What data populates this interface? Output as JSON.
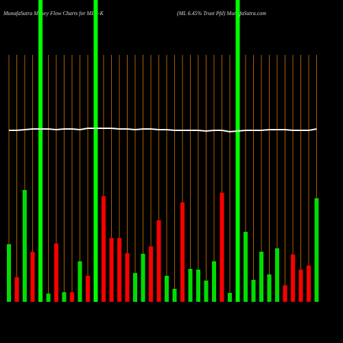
{
  "chart_data": {
    "type": "bar",
    "title": "MunafaSutra  Money Flow  Charts for MER-K",
    "subtitle": "(ML 6.45% Trust Pfd) MunafaSutra.com",
    "values": [
      84,
      36,
      163,
      73,
      440,
      12,
      85,
      14,
      14,
      59,
      38,
      440,
      154,
      93,
      93,
      71,
      42,
      70,
      81,
      119,
      38,
      19,
      145,
      48,
      47,
      31,
      59,
      159,
      13,
      440,
      102,
      32,
      73,
      40,
      78,
      24,
      69,
      47,
      53,
      151
    ],
    "colors": [
      "#00dd00",
      "#ff0000",
      "#00dd00",
      "#ff0000",
      "#00ff00",
      "#00dd00",
      "#ff0000",
      "#00dd00",
      "#ff0000",
      "#00dd00",
      "#ff0000",
      "#00ff00",
      "#ff0000",
      "#ff0000",
      "#ff0000",
      "#ff0000",
      "#00dd00",
      "#00dd00",
      "#ff0000",
      "#ff0000",
      "#00dd00",
      "#00dd00",
      "#ff0000",
      "#00dd00",
      "#00dd00",
      "#00dd00",
      "#00dd00",
      "#ff0000",
      "#00dd00",
      "#00ff00",
      "#00dd00",
      "#00dd00",
      "#00dd00",
      "#00dd00",
      "#00dd00",
      "#ff0000",
      "#ff0000",
      "#ff0000",
      "#ff0000",
      "#00dd00"
    ],
    "line_values": [
      250,
      250,
      251,
      252,
      252,
      252,
      251,
      252,
      252,
      251,
      253,
      253,
      253,
      253,
      252,
      252,
      251,
      252,
      252,
      251,
      251,
      250,
      250,
      250,
      250,
      249,
      250,
      250,
      248,
      249,
      250,
      250,
      250,
      251,
      251,
      251,
      250,
      250,
      250,
      252
    ],
    "line_color": "#ffffff",
    "grid_color": "#b06000",
    "ylim": [
      0,
      440
    ]
  }
}
